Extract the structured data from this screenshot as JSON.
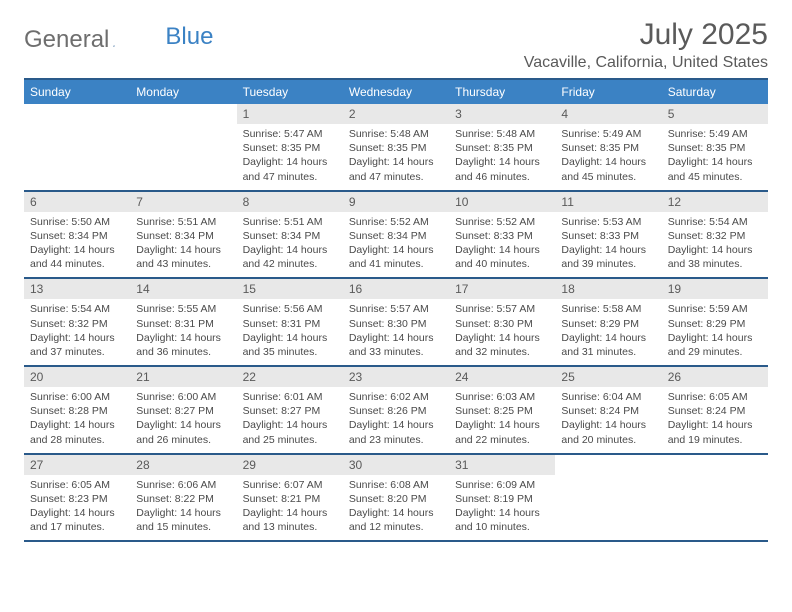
{
  "logo": {
    "general": "General",
    "blue": "Blue"
  },
  "title": "July 2025",
  "location": "Vacaville, California, United States",
  "dayHeaders": [
    "Sunday",
    "Monday",
    "Tuesday",
    "Wednesday",
    "Thursday",
    "Friday",
    "Saturday"
  ],
  "colors": {
    "headerBg": "#3b82c4",
    "borderLine": "#2a5a8a",
    "dayNumBg": "#e8e8e8",
    "textGray": "#5a5a5a",
    "bodyText": "#4a4a4a",
    "logoGray": "#6e6e6e",
    "logoBlue": "#3b82c4",
    "white": "#ffffff"
  },
  "table": {
    "header_fontsize": 12,
    "daynum_fontsize": 12,
    "body_fontsize": 10.5,
    "columns": 7,
    "rows": 5
  },
  "weeks": [
    [
      {
        "n": "",
        "empty": true
      },
      {
        "n": "",
        "empty": true
      },
      {
        "n": "1",
        "sr": "Sunrise: 5:47 AM",
        "ss": "Sunset: 8:35 PM",
        "d1": "Daylight: 14 hours",
        "d2": "and 47 minutes."
      },
      {
        "n": "2",
        "sr": "Sunrise: 5:48 AM",
        "ss": "Sunset: 8:35 PM",
        "d1": "Daylight: 14 hours",
        "d2": "and 47 minutes."
      },
      {
        "n": "3",
        "sr": "Sunrise: 5:48 AM",
        "ss": "Sunset: 8:35 PM",
        "d1": "Daylight: 14 hours",
        "d2": "and 46 minutes."
      },
      {
        "n": "4",
        "sr": "Sunrise: 5:49 AM",
        "ss": "Sunset: 8:35 PM",
        "d1": "Daylight: 14 hours",
        "d2": "and 45 minutes."
      },
      {
        "n": "5",
        "sr": "Sunrise: 5:49 AM",
        "ss": "Sunset: 8:35 PM",
        "d1": "Daylight: 14 hours",
        "d2": "and 45 minutes."
      }
    ],
    [
      {
        "n": "6",
        "sr": "Sunrise: 5:50 AM",
        "ss": "Sunset: 8:34 PM",
        "d1": "Daylight: 14 hours",
        "d2": "and 44 minutes."
      },
      {
        "n": "7",
        "sr": "Sunrise: 5:51 AM",
        "ss": "Sunset: 8:34 PM",
        "d1": "Daylight: 14 hours",
        "d2": "and 43 minutes."
      },
      {
        "n": "8",
        "sr": "Sunrise: 5:51 AM",
        "ss": "Sunset: 8:34 PM",
        "d1": "Daylight: 14 hours",
        "d2": "and 42 minutes."
      },
      {
        "n": "9",
        "sr": "Sunrise: 5:52 AM",
        "ss": "Sunset: 8:34 PM",
        "d1": "Daylight: 14 hours",
        "d2": "and 41 minutes."
      },
      {
        "n": "10",
        "sr": "Sunrise: 5:52 AM",
        "ss": "Sunset: 8:33 PM",
        "d1": "Daylight: 14 hours",
        "d2": "and 40 minutes."
      },
      {
        "n": "11",
        "sr": "Sunrise: 5:53 AM",
        "ss": "Sunset: 8:33 PM",
        "d1": "Daylight: 14 hours",
        "d2": "and 39 minutes."
      },
      {
        "n": "12",
        "sr": "Sunrise: 5:54 AM",
        "ss": "Sunset: 8:32 PM",
        "d1": "Daylight: 14 hours",
        "d2": "and 38 minutes."
      }
    ],
    [
      {
        "n": "13",
        "sr": "Sunrise: 5:54 AM",
        "ss": "Sunset: 8:32 PM",
        "d1": "Daylight: 14 hours",
        "d2": "and 37 minutes."
      },
      {
        "n": "14",
        "sr": "Sunrise: 5:55 AM",
        "ss": "Sunset: 8:31 PM",
        "d1": "Daylight: 14 hours",
        "d2": "and 36 minutes."
      },
      {
        "n": "15",
        "sr": "Sunrise: 5:56 AM",
        "ss": "Sunset: 8:31 PM",
        "d1": "Daylight: 14 hours",
        "d2": "and 35 minutes."
      },
      {
        "n": "16",
        "sr": "Sunrise: 5:57 AM",
        "ss": "Sunset: 8:30 PM",
        "d1": "Daylight: 14 hours",
        "d2": "and 33 minutes."
      },
      {
        "n": "17",
        "sr": "Sunrise: 5:57 AM",
        "ss": "Sunset: 8:30 PM",
        "d1": "Daylight: 14 hours",
        "d2": "and 32 minutes."
      },
      {
        "n": "18",
        "sr": "Sunrise: 5:58 AM",
        "ss": "Sunset: 8:29 PM",
        "d1": "Daylight: 14 hours",
        "d2": "and 31 minutes."
      },
      {
        "n": "19",
        "sr": "Sunrise: 5:59 AM",
        "ss": "Sunset: 8:29 PM",
        "d1": "Daylight: 14 hours",
        "d2": "and 29 minutes."
      }
    ],
    [
      {
        "n": "20",
        "sr": "Sunrise: 6:00 AM",
        "ss": "Sunset: 8:28 PM",
        "d1": "Daylight: 14 hours",
        "d2": "and 28 minutes."
      },
      {
        "n": "21",
        "sr": "Sunrise: 6:00 AM",
        "ss": "Sunset: 8:27 PM",
        "d1": "Daylight: 14 hours",
        "d2": "and 26 minutes."
      },
      {
        "n": "22",
        "sr": "Sunrise: 6:01 AM",
        "ss": "Sunset: 8:27 PM",
        "d1": "Daylight: 14 hours",
        "d2": "and 25 minutes."
      },
      {
        "n": "23",
        "sr": "Sunrise: 6:02 AM",
        "ss": "Sunset: 8:26 PM",
        "d1": "Daylight: 14 hours",
        "d2": "and 23 minutes."
      },
      {
        "n": "24",
        "sr": "Sunrise: 6:03 AM",
        "ss": "Sunset: 8:25 PM",
        "d1": "Daylight: 14 hours",
        "d2": "and 22 minutes."
      },
      {
        "n": "25",
        "sr": "Sunrise: 6:04 AM",
        "ss": "Sunset: 8:24 PM",
        "d1": "Daylight: 14 hours",
        "d2": "and 20 minutes."
      },
      {
        "n": "26",
        "sr": "Sunrise: 6:05 AM",
        "ss": "Sunset: 8:24 PM",
        "d1": "Daylight: 14 hours",
        "d2": "and 19 minutes."
      }
    ],
    [
      {
        "n": "27",
        "sr": "Sunrise: 6:05 AM",
        "ss": "Sunset: 8:23 PM",
        "d1": "Daylight: 14 hours",
        "d2": "and 17 minutes."
      },
      {
        "n": "28",
        "sr": "Sunrise: 6:06 AM",
        "ss": "Sunset: 8:22 PM",
        "d1": "Daylight: 14 hours",
        "d2": "and 15 minutes."
      },
      {
        "n": "29",
        "sr": "Sunrise: 6:07 AM",
        "ss": "Sunset: 8:21 PM",
        "d1": "Daylight: 14 hours",
        "d2": "and 13 minutes."
      },
      {
        "n": "30",
        "sr": "Sunrise: 6:08 AM",
        "ss": "Sunset: 8:20 PM",
        "d1": "Daylight: 14 hours",
        "d2": "and 12 minutes."
      },
      {
        "n": "31",
        "sr": "Sunrise: 6:09 AM",
        "ss": "Sunset: 8:19 PM",
        "d1": "Daylight: 14 hours",
        "d2": "and 10 minutes."
      },
      {
        "n": "",
        "empty": true
      },
      {
        "n": "",
        "empty": true
      }
    ]
  ]
}
